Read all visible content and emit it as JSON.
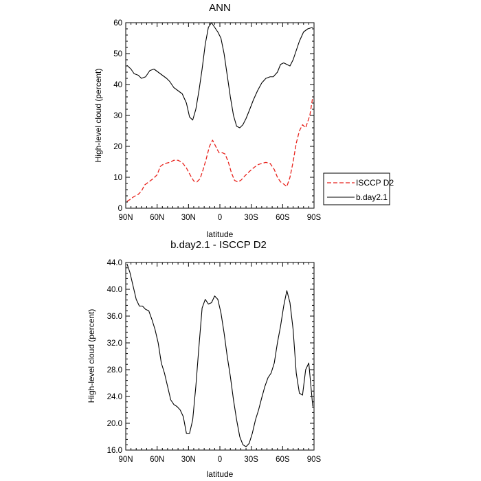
{
  "colors": {
    "observed": "#e8221c",
    "model": "#000000"
  },
  "chart_data": [
    {
      "type": "line",
      "title": "ANN",
      "xlabel": "latitude",
      "ylabel": "High-level cloud (percent)",
      "xlim": [
        90,
        -90
      ],
      "ylim": [
        0,
        60
      ],
      "x_ticks": [
        90,
        60,
        30,
        0,
        -30,
        -60,
        -90
      ],
      "x_tick_labels": [
        "90N",
        "60N",
        "30N",
        "0",
        "30S",
        "60S",
        "90S"
      ],
      "y_ticks": [
        0,
        10,
        20,
        30,
        40,
        50,
        60
      ],
      "y_tick_labels": [
        "0",
        "10",
        "20",
        "30",
        "40",
        "50",
        "60"
      ],
      "legend": {
        "placement": "right",
        "entries": [
          "ISCCP D2",
          "b.day2.1"
        ]
      },
      "grid": false,
      "series": [
        {
          "name": "ISCCP D2",
          "style": "dashed",
          "color": "#e8221c",
          "x": [
            88.8,
            86,
            82,
            78,
            75,
            72,
            68,
            64,
            60,
            57,
            55,
            52,
            48,
            44,
            40,
            36,
            32,
            28,
            25,
            22,
            19,
            16,
            13,
            10,
            7,
            4,
            1,
            -2,
            -5,
            -8,
            -11,
            -14,
            -17,
            -20,
            -24,
            -28,
            -32,
            -36,
            -40,
            -44,
            -48,
            -52,
            -55,
            -58,
            -61,
            -64,
            -67,
            -70,
            -73,
            -76,
            -79,
            -82,
            -84,
            -86,
            -88.8
          ],
          "y": [
            2.2,
            2.8,
            3.8,
            4.5,
            5.5,
            7.5,
            8.5,
            9.5,
            10.8,
            13.5,
            14.0,
            14.5,
            14.8,
            15.5,
            15.5,
            14.8,
            13.0,
            10.5,
            8.8,
            8.5,
            9.5,
            12.5,
            16.0,
            20.0,
            22.0,
            20.0,
            18.0,
            18.0,
            17.5,
            15.0,
            11.5,
            9.0,
            8.5,
            9.0,
            10.5,
            11.8,
            13.0,
            14.0,
            14.5,
            14.8,
            14.5,
            12.5,
            10.0,
            8.5,
            7.8,
            7.0,
            10.0,
            15.0,
            21.0,
            25.0,
            27.0,
            26.0,
            28.0,
            30.0,
            36.0
          ]
        },
        {
          "name": "b.day2.1",
          "style": "solid",
          "color": "#000000",
          "x": [
            88.8,
            85,
            82,
            78,
            75,
            71,
            67,
            63,
            59,
            55,
            51,
            48,
            44,
            40,
            36,
            32,
            29,
            26,
            23,
            20,
            17,
            14,
            11,
            8,
            5,
            2,
            -1,
            -4,
            -7,
            -10,
            -13,
            -16,
            -19,
            -22,
            -25,
            -28,
            -32,
            -36,
            -40,
            -44,
            -48,
            -51,
            -55,
            -58,
            -61,
            -64,
            -67,
            -70,
            -73,
            -76,
            -80,
            -84,
            -88.8
          ],
          "y": [
            46.2,
            45.0,
            43.5,
            43.0,
            42.0,
            42.5,
            44.5,
            45.0,
            44.0,
            43.0,
            42.0,
            41.0,
            39.0,
            38.0,
            37.0,
            34.0,
            29.5,
            28.5,
            32.0,
            38.0,
            45.0,
            53.0,
            58.5,
            60.0,
            58.5,
            57.0,
            55.0,
            50.0,
            43.0,
            36.0,
            30.0,
            26.5,
            26.0,
            27.0,
            29.0,
            31.5,
            35.0,
            38.0,
            40.5,
            42.0,
            42.5,
            42.5,
            44.0,
            46.5,
            47.0,
            46.5,
            46.0,
            48.0,
            51.0,
            54.0,
            57.0,
            58.0,
            58.5
          ]
        }
      ]
    },
    {
      "type": "line",
      "title": "b.day2.1 - ISCCP D2",
      "xlabel": "latitude",
      "ylabel": "High-level cloud (percent)",
      "xlim": [
        90,
        -90
      ],
      "ylim": [
        16,
        44
      ],
      "x_ticks": [
        90,
        60,
        30,
        0,
        -30,
        -60,
        -90
      ],
      "x_tick_labels": [
        "90N",
        "60N",
        "30N",
        "0",
        "30S",
        "60S",
        "90S"
      ],
      "y_ticks": [
        16,
        20,
        24,
        28,
        32,
        36,
        40,
        44
      ],
      "y_tick_labels": [
        "16.0",
        "20.0",
        "24.0",
        "28.0",
        "32.0",
        "36.0",
        "40.0",
        "44.0"
      ],
      "grid": false,
      "series": [
        {
          "name": "b.day2.1 - ISCCP D2",
          "style": "solid",
          "color": "#000000",
          "x": [
            88.8,
            86,
            83,
            80,
            77,
            74,
            71,
            68,
            65,
            62,
            59,
            56,
            53,
            50,
            47,
            44,
            41,
            38,
            35,
            32,
            29,
            26,
            23,
            20,
            17,
            14,
            11,
            8,
            5,
            2,
            -1,
            -4,
            -7,
            -10,
            -13,
            -16,
            -19,
            -22,
            -25,
            -28,
            -31,
            -34,
            -37,
            -40,
            -43,
            -46,
            -49,
            -52,
            -55,
            -58,
            -61,
            -64,
            -67,
            -70,
            -73,
            -76,
            -79,
            -82,
            -85,
            -88.8
          ],
          "y": [
            43.8,
            42.5,
            40.5,
            38.5,
            37.5,
            37.5,
            37.0,
            36.8,
            35.5,
            34.0,
            32.0,
            29.0,
            27.5,
            25.5,
            23.5,
            22.8,
            22.5,
            22.0,
            21.0,
            18.5,
            18.5,
            20.5,
            25.5,
            31.5,
            37.2,
            38.5,
            37.8,
            38.0,
            39.0,
            38.5,
            36.5,
            33.5,
            30.0,
            27.0,
            23.5,
            20.5,
            18.0,
            16.8,
            16.5,
            17.0,
            18.5,
            20.5,
            22.0,
            23.8,
            25.5,
            26.8,
            27.5,
            29.0,
            32.0,
            34.5,
            37.5,
            39.8,
            38.0,
            34.0,
            27.5,
            24.5,
            24.2,
            28.0,
            29.0,
            22.5
          ]
        }
      ]
    }
  ]
}
